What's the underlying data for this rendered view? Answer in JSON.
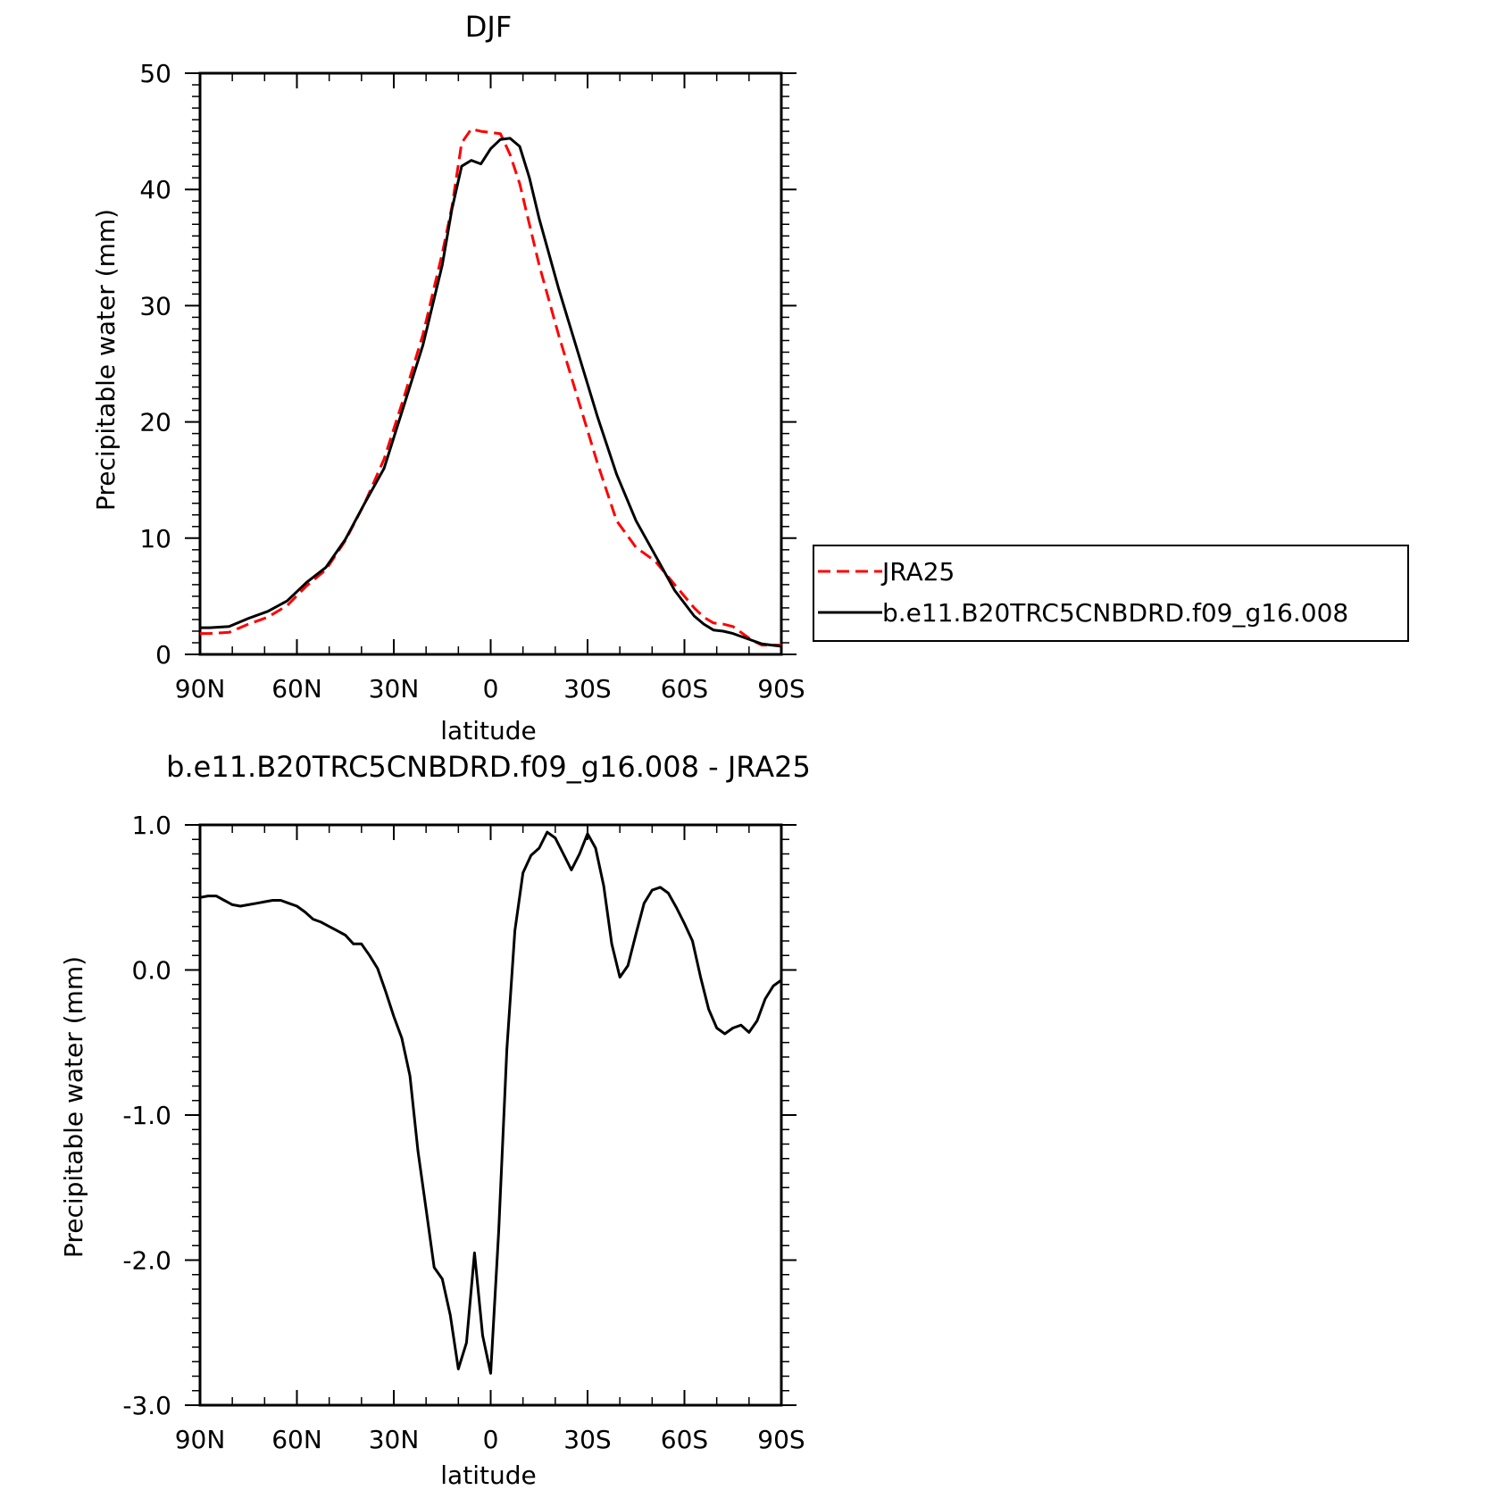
{
  "chart_data": [
    {
      "type": "line",
      "title": "DJF",
      "xlabel": "latitude",
      "ylabel": "Precipitable water (mm)",
      "xlim": [
        90,
        -90
      ],
      "ylim": [
        0,
        50
      ],
      "xticks": [
        90,
        60,
        30,
        0,
        -30,
        -60,
        -90
      ],
      "xtick_labels": [
        "90N",
        "60N",
        "30N",
        "0",
        "30S",
        "60S",
        "90S"
      ],
      "yticks": [
        0,
        10,
        20,
        30,
        40,
        50
      ],
      "ytick_labels": [
        "0",
        "10",
        "20",
        "30",
        "40",
        "50"
      ],
      "legend_position": "right",
      "series": [
        {
          "name": "JRA25",
          "color": "#ff0000",
          "dash": "dashed",
          "x": [
            90,
            87,
            81,
            75,
            69,
            63,
            57,
            51,
            45,
            39,
            33,
            27,
            21,
            15,
            12,
            9,
            6,
            3,
            0,
            -3,
            -6,
            -9,
            -12,
            -15,
            -21,
            -27,
            -33,
            -39,
            -45,
            -51,
            -57,
            -63,
            -66,
            -69,
            -72,
            -75,
            -78,
            -81,
            -84,
            -87,
            -90
          ],
          "values": [
            1.8,
            1.8,
            1.9,
            2.6,
            3.2,
            4.2,
            5.9,
            7.3,
            9.8,
            13.0,
            16.8,
            22.0,
            27.5,
            34.5,
            38.5,
            44.0,
            45.2,
            45.0,
            44.9,
            44.8,
            43.0,
            40.5,
            37.0,
            33.5,
            27.5,
            22.0,
            16.5,
            11.5,
            9.2,
            8.0,
            6.0,
            4.0,
            3.2,
            2.7,
            2.6,
            2.4,
            1.8,
            1.2,
            0.8,
            0.8,
            0.8
          ]
        },
        {
          "name": "b.e11.B20TRC5CNBDRD.f09_g16.008",
          "color": "#000000",
          "dash": "solid",
          "x": [
            90,
            87,
            81,
            75,
            69,
            63,
            57,
            51,
            45,
            39,
            33,
            27,
            21,
            15,
            12,
            9,
            6,
            3,
            0,
            -3,
            -6,
            -9,
            -12,
            -15,
            -21,
            -27,
            -33,
            -39,
            -45,
            -51,
            -57,
            -63,
            -66,
            -69,
            -72,
            -75,
            -78,
            -81,
            -84,
            -87,
            -90
          ],
          "values": [
            2.3,
            2.3,
            2.4,
            3.1,
            3.7,
            4.6,
            6.2,
            7.5,
            9.9,
            13.0,
            16.0,
            21.3,
            26.6,
            33.5,
            38.3,
            42.0,
            42.5,
            42.2,
            43.5,
            44.3,
            44.4,
            43.7,
            41.0,
            37.5,
            31.5,
            26.0,
            20.5,
            15.5,
            11.5,
            8.5,
            5.5,
            3.3,
            2.6,
            2.1,
            2.0,
            1.8,
            1.5,
            1.2,
            0.9,
            0.8,
            0.7
          ]
        }
      ]
    },
    {
      "type": "line",
      "title": "b.e11.B20TRC5CNBDRD.f09_g16.008 - JRA25",
      "xlabel": "latitude",
      "ylabel": "Precipitable water (mm)",
      "xlim": [
        90,
        -90
      ],
      "ylim": [
        -3.0,
        1.0
      ],
      "xticks": [
        90,
        60,
        30,
        0,
        -30,
        -60,
        -90
      ],
      "xtick_labels": [
        "90N",
        "60N",
        "30N",
        "0",
        "30S",
        "60S",
        "90S"
      ],
      "yticks": [
        -3.0,
        -2.0,
        -1.0,
        0.0,
        1.0
      ],
      "ytick_labels": [
        "-3.0",
        "-2.0",
        "-1.0",
        "0.0",
        "1.0"
      ],
      "series": [
        {
          "color": "#000000",
          "dash": "solid",
          "x": [
            90,
            87.5,
            85,
            82.5,
            80,
            77.5,
            75,
            72.5,
            70,
            67.5,
            65,
            62.5,
            60,
            57.5,
            55,
            52.5,
            50,
            47.5,
            45,
            42.5,
            40,
            37.5,
            35,
            32.5,
            30,
            27.5,
            25,
            22.5,
            20,
            17.5,
            15,
            12.5,
            10,
            7.5,
            5,
            2.5,
            0,
            -2.5,
            -5,
            -7.5,
            -10,
            -12.5,
            -15,
            -17.5,
            -20,
            -22.5,
            -25,
            -27.5,
            -30,
            -32.5,
            -35,
            -37.5,
            -40,
            -42.5,
            -45,
            -47.5,
            -50,
            -52.5,
            -55,
            -57.5,
            -60,
            -62.5,
            -65,
            -67.5,
            -70,
            -72.5,
            -75,
            -77.5,
            -80,
            -82.5,
            -85,
            -87.5,
            -90
          ],
          "values": [
            0.5,
            0.51,
            0.51,
            0.48,
            0.45,
            0.44,
            0.45,
            0.46,
            0.47,
            0.48,
            0.48,
            0.46,
            0.44,
            0.4,
            0.35,
            0.33,
            0.3,
            0.27,
            0.24,
            0.18,
            0.18,
            0.1,
            0.01,
            -0.15,
            -0.32,
            -0.47,
            -0.73,
            -1.25,
            -1.65,
            -2.05,
            -2.13,
            -2.38,
            -2.75,
            -2.57,
            -1.95,
            -2.52,
            -2.78,
            -1.8,
            -0.55,
            0.27,
            0.67,
            0.79,
            0.84,
            0.95,
            0.91,
            0.8,
            0.69,
            0.8,
            0.94,
            0.84,
            0.58,
            0.18,
            -0.05,
            0.03,
            0.25,
            0.46,
            0.55,
            0.57,
            0.53,
            0.43,
            0.32,
            0.2,
            -0.05,
            -0.27,
            -0.4,
            -0.44,
            -0.4,
            -0.38,
            -0.43,
            -0.35,
            -0.2,
            -0.11,
            -0.07
          ]
        }
      ]
    }
  ]
}
